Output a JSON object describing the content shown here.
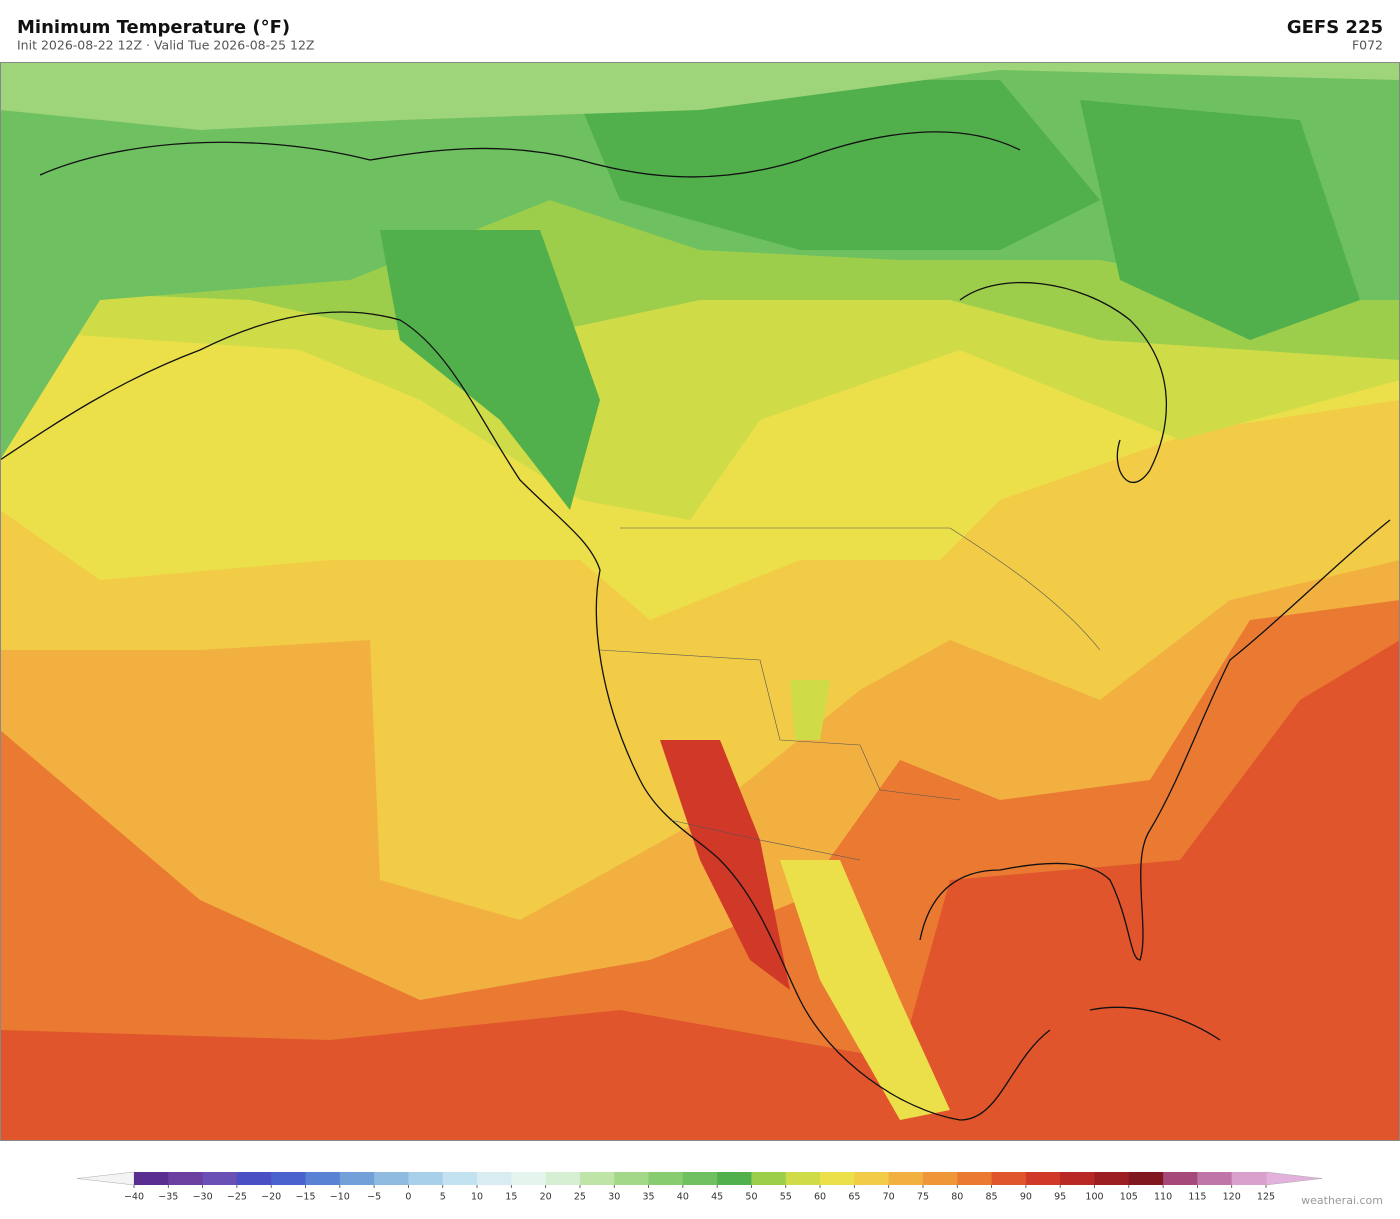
{
  "header": {
    "title": "Minimum Temperature  (°F)",
    "subtitle": "Init 2026-08-22 12Z   ·   Valid Tue 2026-08-25 12Z",
    "model": "GEFS  225",
    "forecast_hour": "F072"
  },
  "colorbar": {
    "ticks": [
      {
        "value": -40,
        "label": "−40"
      },
      {
        "value": -35,
        "label": "−35"
      },
      {
        "value": -30,
        "label": "−30"
      },
      {
        "value": -25,
        "label": "−25"
      },
      {
        "value": -20,
        "label": "−20"
      },
      {
        "value": -15,
        "label": "−15"
      },
      {
        "value": -10,
        "label": "−10"
      },
      {
        "value": -5,
        "label": "−5"
      },
      0,
      5,
      10,
      15,
      20,
      25,
      30,
      35,
      40,
      45,
      50,
      55,
      60,
      65,
      70,
      75,
      80,
      85,
      90,
      95,
      100,
      105,
      110,
      115,
      120,
      125
    ],
    "colors": [
      "#5a2d91",
      "#6a3fa0",
      "#6a4fb5",
      "#4a4fc4",
      "#4a62cc",
      "#5a82d4",
      "#72a0d8",
      "#8fbbe0",
      "#a8d0ea",
      "#c2e2f0",
      "#d8ecf2",
      "#e6f4ee",
      "#d6eed2",
      "#bfe4a8",
      "#a2d888",
      "#88cc70",
      "#6ec060",
      "#52b04c",
      "#9cce4c",
      "#cfdc48",
      "#ece04a",
      "#f2cc46",
      "#f2b040",
      "#ef9638",
      "#ea7a32",
      "#e0552c",
      "#d03828",
      "#b82824",
      "#9c1e22",
      "#801820",
      "#a4497a",
      "#c075a8",
      "#d9a0cc"
    ],
    "under_color": "#f4f4f4",
    "over_color": "#e2b2dc"
  },
  "footer": {
    "credit": "weatherai.com"
  }
}
